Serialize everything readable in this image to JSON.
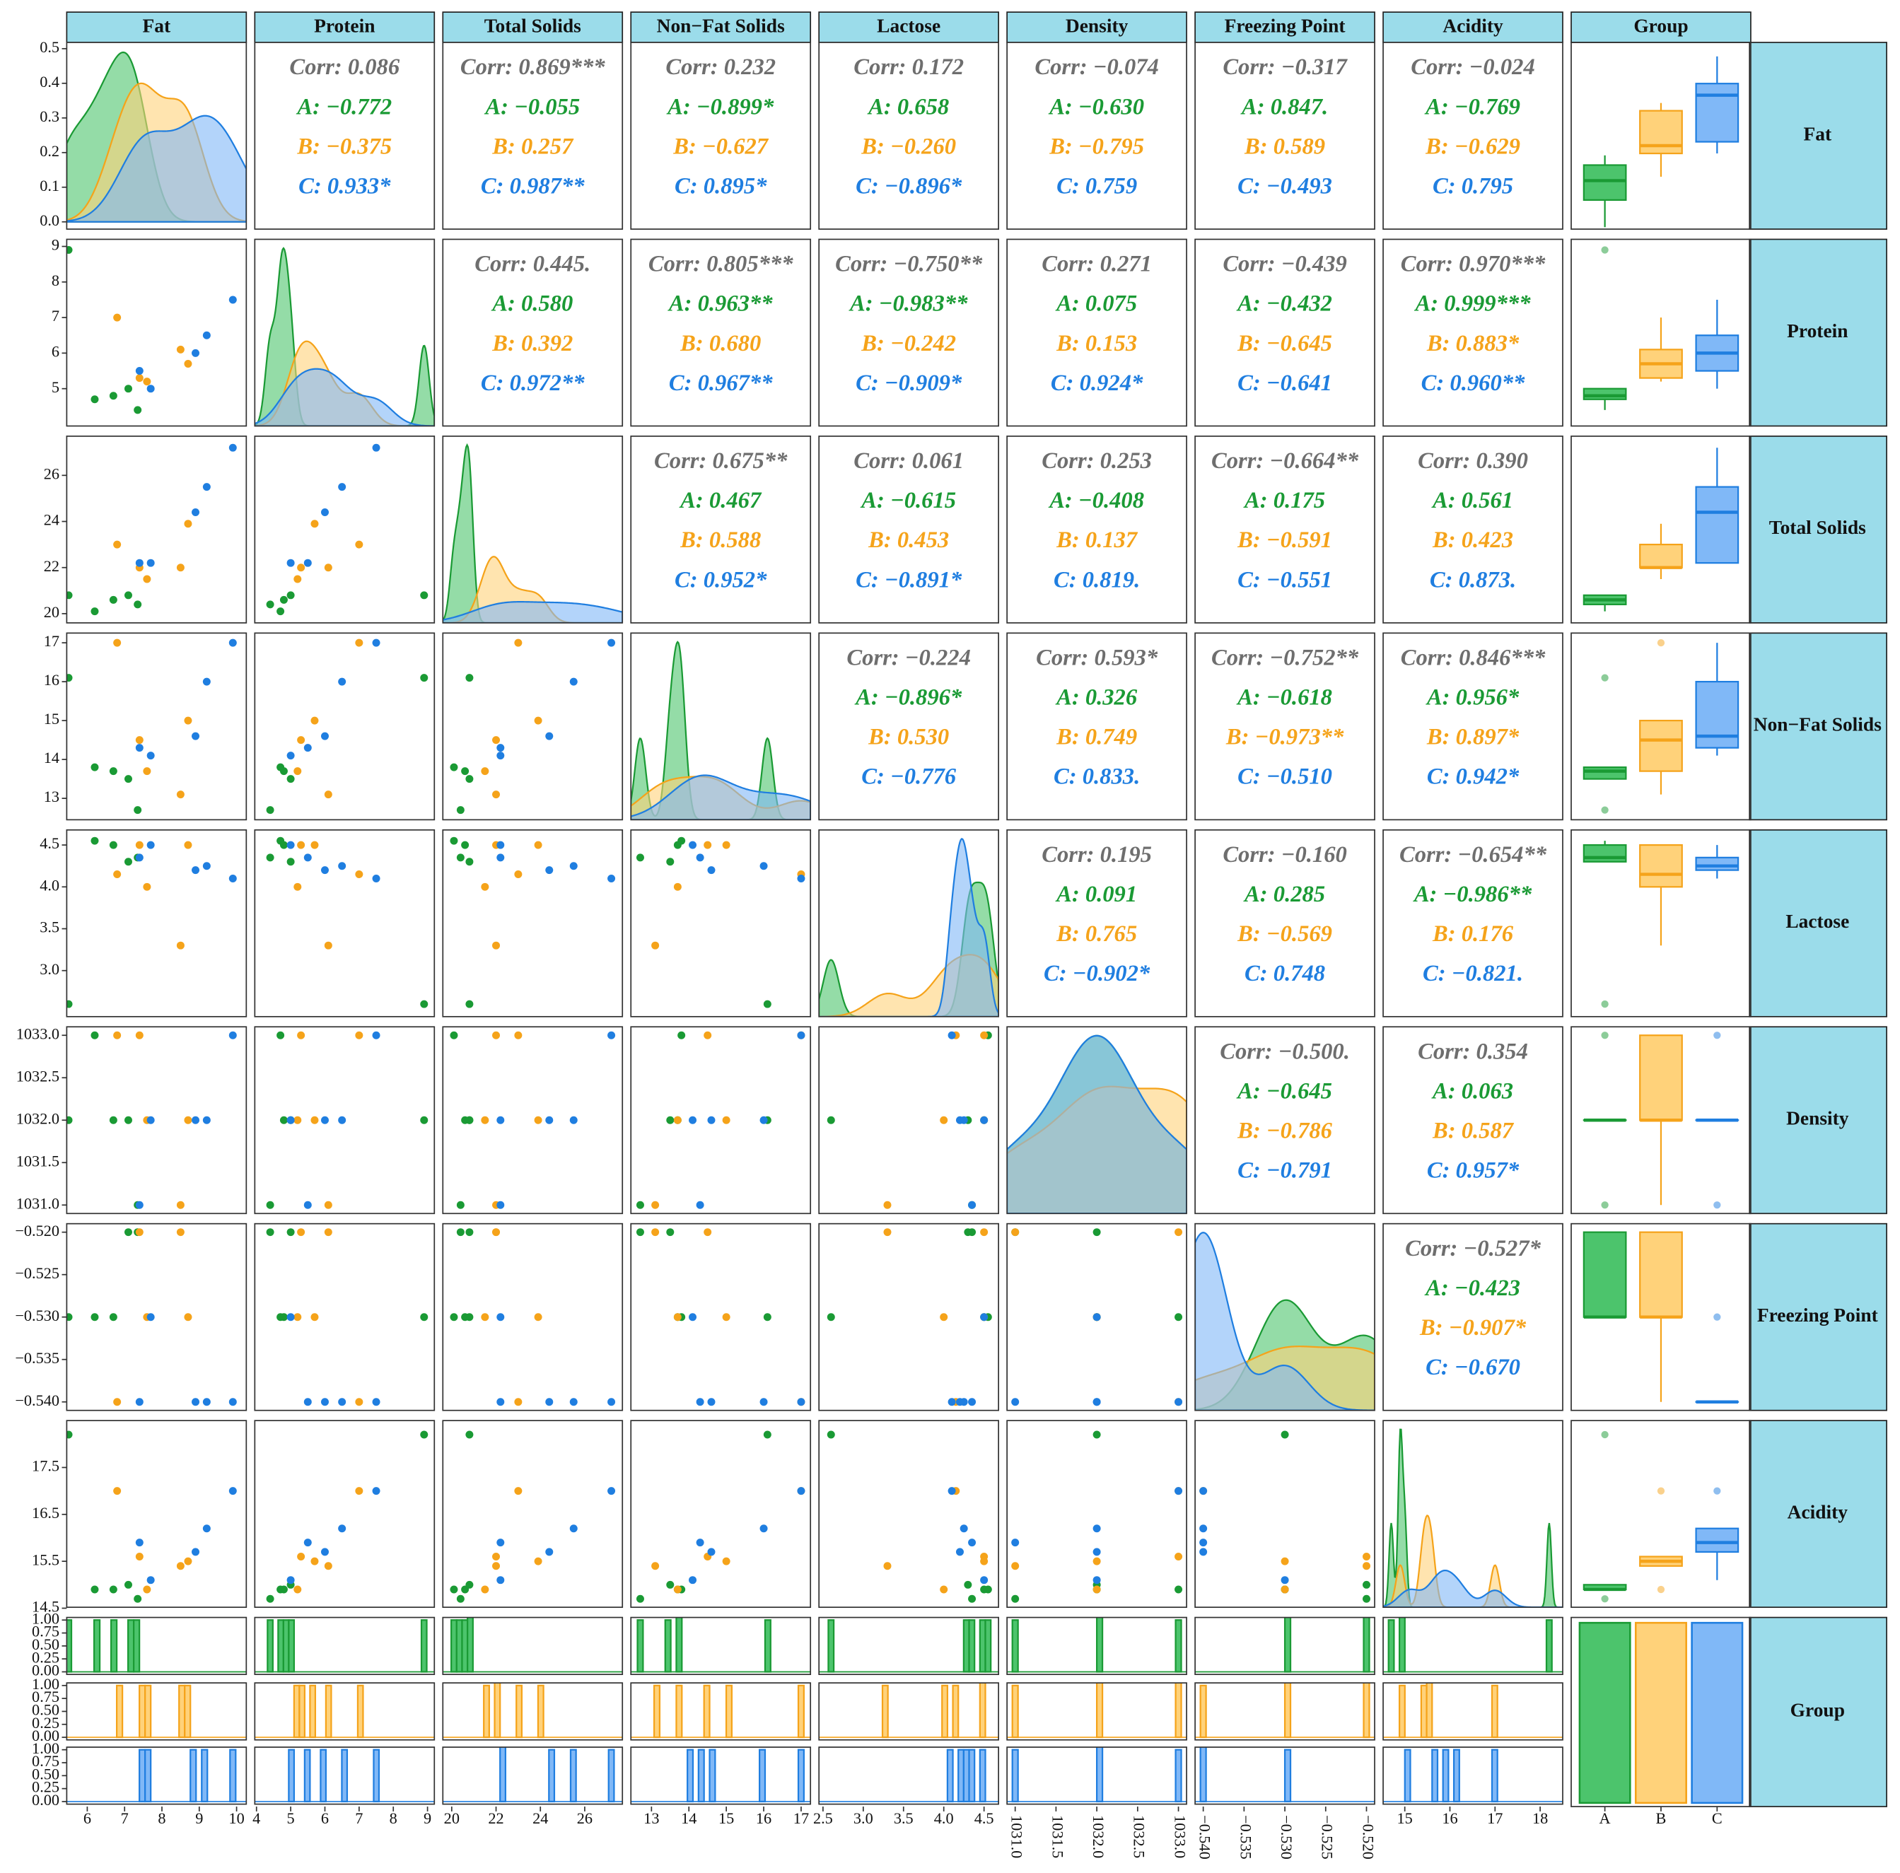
{
  "chart_data": {
    "type": "pairs",
    "group_label": "Group",
    "groups": [
      {
        "name": "A",
        "color": "#1a9a34",
        "fill": "#4cc46c"
      },
      {
        "name": "B",
        "color": "#f5a31a",
        "fill": "#ffd27a"
      },
      {
        "name": "C",
        "color": "#1f7ee0",
        "fill": "#80b8f7"
      }
    ],
    "overall_color": "#6e6e6e",
    "strip_color": "#9bdcea",
    "variables": [
      {
        "name": "Fat",
        "lim": [
          5.45,
          10.26
        ],
        "xticks": [
          6,
          7,
          8,
          9,
          10
        ],
        "yticks": []
      },
      {
        "name": "Protein",
        "lim": [
          3.95,
          9.2
        ],
        "xticks": [
          4,
          5,
          6,
          7,
          8,
          9
        ],
        "yticks": [
          5,
          6,
          7,
          8,
          9
        ]
      },
      {
        "name": "Total Solids",
        "lim": [
          19.6,
          27.7
        ],
        "xticks": [
          20,
          22,
          24,
          26
        ],
        "yticks": [
          20,
          22,
          24,
          26
        ]
      },
      {
        "name": "Non−Fat Solids",
        "lim": [
          12.45,
          17.25
        ],
        "xticks": [
          13,
          14,
          15,
          16,
          17
        ],
        "yticks": [
          13,
          14,
          15,
          16,
          17
        ]
      },
      {
        "name": "Lactose",
        "lim": [
          2.45,
          4.68
        ],
        "xticks": [
          2.5,
          {
            "value": 3,
            "label": "3.0"
          },
          3.5,
          {
            "value": 4,
            "label": "4.0"
          },
          4.5
        ],
        "yticks": [
          {
            "value": 3,
            "label": "3.0"
          },
          3.5,
          {
            "value": 4,
            "label": "4.0"
          },
          4.5
        ]
      },
      {
        "name": "Density",
        "lim": [
          1030.9,
          1033.1
        ],
        "rotate_xticks": true,
        "xticks": [
          {
            "value": 1031,
            "label": "1031.0"
          },
          1031.5,
          {
            "value": 1032,
            "label": "1032.0"
          },
          1032.5,
          {
            "value": 1033,
            "label": "1033.0"
          }
        ],
        "yticks": [
          {
            "value": 1031,
            "label": "1031.0"
          },
          1031.5,
          {
            "value": 1032,
            "label": "1032.0"
          },
          1032.5,
          {
            "value": 1033,
            "label": "1033.0"
          }
        ]
      },
      {
        "name": "Freezing Point",
        "lim": [
          -0.541,
          -0.519
        ],
        "rotate_xticks": true,
        "xticks": [
          {
            "value": -0.54,
            "label": "−0.540"
          },
          {
            "value": -0.535,
            "label": "−0.535"
          },
          {
            "value": -0.53,
            "label": "−0.530"
          },
          {
            "value": -0.525,
            "label": "−0.525"
          },
          {
            "value": -0.52,
            "label": "−0.520"
          }
        ],
        "yticks": [
          {
            "value": -0.54,
            "label": "−0.540"
          },
          {
            "value": -0.535,
            "label": "−0.535"
          },
          {
            "value": -0.53,
            "label": "−0.530"
          },
          {
            "value": -0.525,
            "label": "−0.525"
          },
          {
            "value": -0.52,
            "label": "−0.520"
          }
        ]
      },
      {
        "name": "Acidity",
        "lim": [
          14.52,
          18.5
        ],
        "xticks": [
          15,
          16,
          17,
          18
        ],
        "yticks": [
          14.5,
          15.5,
          16.5,
          17.5
        ]
      }
    ],
    "density_ylim": [
      -0.021,
      0.518
    ],
    "density_yticks": [
      {
        "value": 0,
        "label": "0.0"
      },
      0.1,
      0.2,
      0.3,
      0.4,
      0.5
    ],
    "hist_ylim": [
      -0.05,
      1.05
    ],
    "hist_yticks": [
      {
        "value": 0,
        "label": "0.00"
      },
      0.25,
      {
        "value": 0.5,
        "label": "0.50"
      },
      0.75,
      {
        "value": 1,
        "label": "1.00"
      }
    ],
    "observations": [
      {
        "group": "A",
        "values": [
          5.5,
          8.9,
          20.8,
          16.1,
          2.6,
          1032,
          -0.53,
          18.2
        ]
      },
      {
        "group": "A",
        "values": [
          6.2,
          4.7,
          20.1,
          13.8,
          4.55,
          1033,
          -0.53,
          14.9
        ]
      },
      {
        "group": "A",
        "values": [
          6.7,
          4.8,
          20.6,
          13.7,
          4.5,
          1032,
          -0.53,
          14.9
        ]
      },
      {
        "group": "A",
        "values": [
          7.1,
          5.0,
          20.8,
          13.5,
          4.3,
          1032,
          -0.52,
          15.0
        ]
      },
      {
        "group": "A",
        "values": [
          7.35,
          4.4,
          20.4,
          12.7,
          4.35,
          1031,
          -0.52,
          14.7
        ]
      },
      {
        "group": "B",
        "values": [
          6.8,
          7.0,
          23.0,
          17.0,
          4.15,
          1033,
          -0.54,
          17.0
        ]
      },
      {
        "group": "B",
        "values": [
          7.4,
          5.3,
          22.0,
          14.5,
          4.5,
          1033,
          -0.52,
          15.6
        ]
      },
      {
        "group": "B",
        "values": [
          7.6,
          5.2,
          21.5,
          13.7,
          4.0,
          1032,
          -0.53,
          14.9
        ]
      },
      {
        "group": "B",
        "values": [
          8.5,
          6.1,
          22.0,
          13.1,
          3.3,
          1031,
          -0.52,
          15.4
        ]
      },
      {
        "group": "B",
        "values": [
          8.7,
          5.7,
          23.9,
          15.0,
          4.5,
          1032,
          -0.53,
          15.5
        ]
      },
      {
        "group": "C",
        "values": [
          7.4,
          5.5,
          22.2,
          14.3,
          4.35,
          1031,
          -0.54,
          15.9
        ]
      },
      {
        "group": "C",
        "values": [
          7.7,
          5.0,
          22.2,
          14.1,
          4.5,
          1032,
          -0.53,
          15.1
        ]
      },
      {
        "group": "C",
        "values": [
          8.9,
          6.0,
          24.4,
          14.6,
          4.2,
          1032,
          -0.54,
          15.7
        ]
      },
      {
        "group": "C",
        "values": [
          9.2,
          6.5,
          25.5,
          16.0,
          4.25,
          1032,
          -0.54,
          16.2
        ]
      },
      {
        "group": "C",
        "values": [
          9.9,
          7.5,
          27.2,
          17.0,
          4.1,
          1033,
          -0.54,
          17.0
        ]
      }
    ],
    "correlations": [
      [
        [
          "Corr: 0.086",
          "A: −0.772",
          "B: −0.375",
          "C: 0.933*"
        ],
        [
          "Corr: 0.869***",
          "A: −0.055",
          "B: 0.257",
          "C: 0.987**"
        ],
        [
          "Corr: 0.232",
          "A: −0.899*",
          "B: −0.627",
          "C: 0.895*"
        ],
        [
          "Corr: 0.172",
          "A: 0.658",
          "B: −0.260",
          "C: −0.896*"
        ],
        [
          "Corr: −0.074",
          "A: −0.630",
          "B: −0.795",
          "C: 0.759"
        ],
        [
          "Corr: −0.317",
          "A: 0.847.",
          "B: 0.589",
          "C: −0.493"
        ],
        [
          "Corr: −0.024",
          "A: −0.769",
          "B: −0.629",
          "C: 0.795"
        ]
      ],
      [
        [
          "Corr: 0.445.",
          "A: 0.580",
          "B: 0.392",
          "C: 0.972**"
        ],
        [
          "Corr: 0.805***",
          "A: 0.963**",
          "B: 0.680",
          "C: 0.967**"
        ],
        [
          "Corr: −0.750**",
          "A: −0.983**",
          "B: −0.242",
          "C: −0.909*"
        ],
        [
          "Corr: 0.271",
          "A: 0.075",
          "B: 0.153",
          "C: 0.924*"
        ],
        [
          "Corr: −0.439",
          "A: −0.432",
          "B: −0.645",
          "C: −0.641"
        ],
        [
          "Corr: 0.970***",
          "A: 0.999***",
          "B: 0.883*",
          "C: 0.960**"
        ]
      ],
      [
        [
          "Corr: 0.675**",
          "A: 0.467",
          "B: 0.588",
          "C: 0.952*"
        ],
        [
          "Corr: 0.061",
          "A: −0.615",
          "B: 0.453",
          "C: −0.891*"
        ],
        [
          "Corr: 0.253",
          "A: −0.408",
          "B: 0.137",
          "C: 0.819."
        ],
        [
          "Corr: −0.664**",
          "A: 0.175",
          "B: −0.591",
          "C: −0.551"
        ],
        [
          "Corr: 0.390",
          "A: 0.561",
          "B: 0.423",
          "C: 0.873."
        ]
      ],
      [
        [
          "Corr: −0.224",
          "A: −0.896*",
          "B: 0.530",
          "C: −0.776"
        ],
        [
          "Corr: 0.593*",
          "A: 0.326",
          "B: 0.749",
          "C: 0.833."
        ],
        [
          "Corr: −0.752**",
          "A: −0.618",
          "B: −0.973**",
          "C: −0.510"
        ],
        [
          "Corr: 0.846***",
          "A: 0.956*",
          "B: 0.897*",
          "C: 0.942*"
        ]
      ],
      [
        [
          "Corr: 0.195",
          "A: 0.091",
          "B: 0.765",
          "C: −0.902*"
        ],
        [
          "Corr: −0.160",
          "A: 0.285",
          "B: −0.569",
          "C: 0.748"
        ],
        [
          "Corr: −0.654**",
          "A: −0.986**",
          "B: 0.176",
          "C: −0.821."
        ]
      ],
      [
        [
          "Corr: −0.500.",
          "A: −0.645",
          "B: −0.786",
          "C: −0.791"
        ],
        [
          "Corr: 0.354",
          "A: 0.063",
          "B: 0.587",
          "C: 0.957*"
        ]
      ],
      [
        [
          "Corr: −0.527*",
          "A: −0.423",
          "B: −0.907*",
          "C: −0.670"
        ]
      ]
    ]
  }
}
